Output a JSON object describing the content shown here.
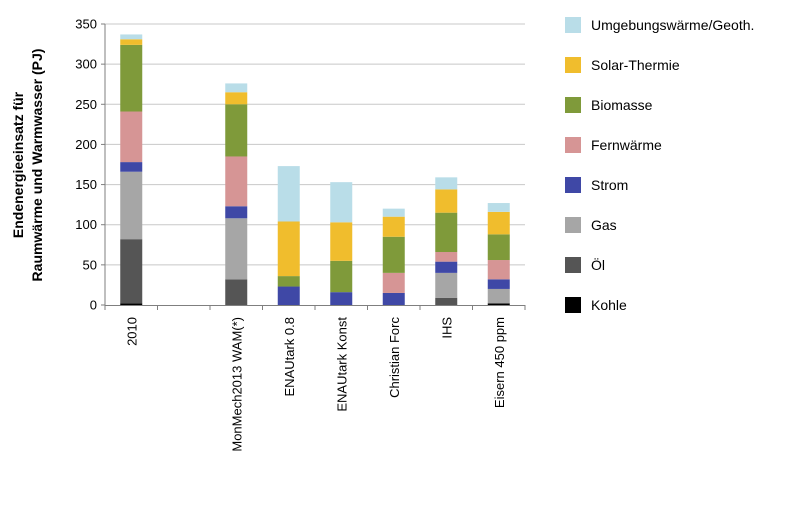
{
  "chart_data": {
    "type": "bar",
    "stacked": true,
    "ylabel_line1": "Endenergieeinsatz für",
    "ylabel_line2": "Raumwärme und Warmwasser (PJ)",
    "ylim": [
      0,
      350
    ],
    "yticks": [
      "0",
      "50",
      "100",
      "150",
      "200",
      "250",
      "300",
      "350"
    ],
    "grid": true,
    "legend_position": "right",
    "categories": [
      "2010",
      "",
      "MonMech2013 WAM(*)",
      "ENAUtark 0.8",
      "ENAUtark Konst",
      "Christian Forc",
      "IHS",
      "Eisern 450 ppm"
    ],
    "series": [
      {
        "name": "Kohle",
        "color": "#000000",
        "values": [
          2,
          0,
          0,
          0,
          0,
          0,
          0,
          2
        ]
      },
      {
        "name": "Öl",
        "color": "#555555",
        "values": [
          80,
          0,
          32,
          0,
          0,
          0,
          9,
          0
        ]
      },
      {
        "name": "Gas",
        "color": "#a6a6a6",
        "values": [
          84,
          0,
          76,
          0,
          0,
          0,
          31,
          18
        ]
      },
      {
        "name": "Strom",
        "color": "#3f48a6",
        "values": [
          12,
          0,
          15,
          23,
          16,
          15,
          14,
          12
        ]
      },
      {
        "name": "Fernwärme",
        "color": "#d69595",
        "values": [
          63,
          0,
          62,
          0,
          0,
          25,
          12,
          24
        ]
      },
      {
        "name": "Biomasse",
        "color": "#7f9a3a",
        "values": [
          83,
          0,
          65,
          13,
          39,
          45,
          49,
          32
        ]
      },
      {
        "name": "Solar-Thermie",
        "color": "#f0bd2d",
        "values": [
          7,
          0,
          15,
          68,
          48,
          25,
          29,
          28
        ]
      },
      {
        "name": "Umgebungswärme/Geoth.",
        "color": "#b9dde8",
        "values": [
          6,
          0,
          11,
          69,
          50,
          10,
          15,
          11
        ]
      }
    ]
  }
}
